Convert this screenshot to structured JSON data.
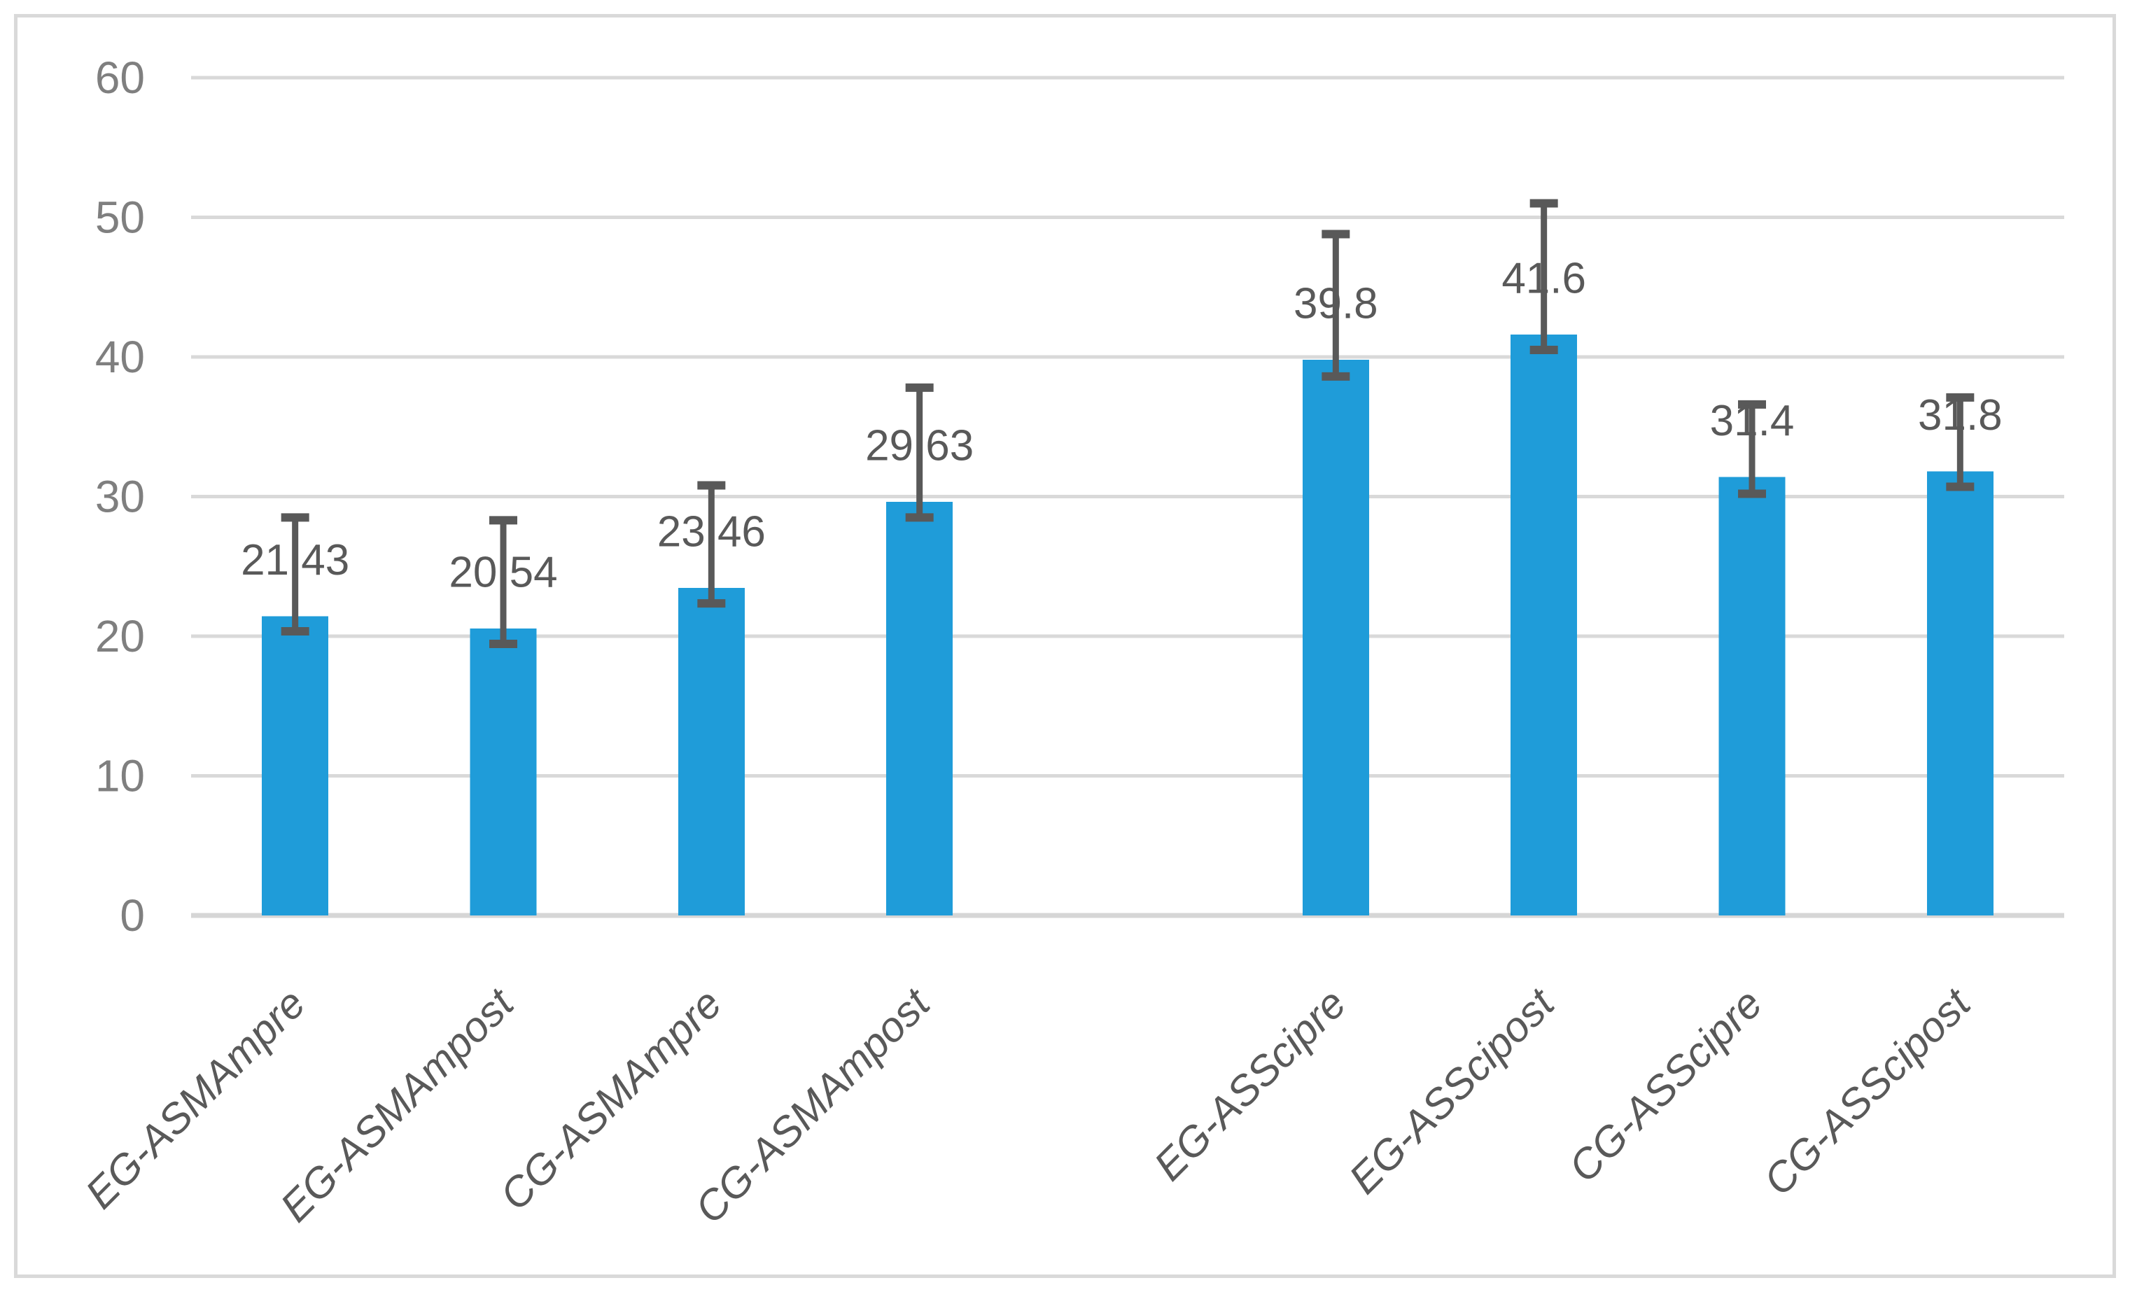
{
  "chart_data": {
    "type": "bar",
    "title": "",
    "categories": [
      "EG-ASMAmpre",
      "EG-ASMAmpost",
      "CG-ASMAmpre",
      "CG-ASMAmpost",
      "EG-ASScipre",
      "EG-ASScipost",
      "CG-ASScipre",
      "CG-ASScipost"
    ],
    "values": [
      21.43,
      20.54,
      23.46,
      29.63,
      39.8,
      41.6,
      31.4,
      31.8
    ],
    "data_labels": [
      "21.43",
      "20.54",
      "23.46",
      "29.63",
      "39.8",
      "41.6",
      "31.4",
      "31.8"
    ],
    "error_bars": [
      {
        "low": 20.35,
        "high": 28.5
      },
      {
        "low": 19.45,
        "high": 28.3
      },
      {
        "low": 22.35,
        "high": 30.8
      },
      {
        "low": 28.5,
        "high": 37.8
      },
      {
        "low": 38.6,
        "high": 48.8
      },
      {
        "low": 40.5,
        "high": 51.0
      },
      {
        "low": 30.2,
        "high": 36.6
      },
      {
        "low": 30.7,
        "high": 37.1
      }
    ],
    "bar_slots": [
      0,
      1,
      2,
      3,
      5,
      6,
      7,
      8
    ],
    "total_slots": 9,
    "group_gap_after_index": 3,
    "y_axis": {
      "min": 0,
      "max": 60,
      "step": 10,
      "tick_labels": [
        "0",
        "10",
        "20",
        "30",
        "40",
        "50",
        "60"
      ]
    },
    "xlabel": "",
    "ylabel": "",
    "legend": null,
    "grid": true,
    "colors": {
      "bar_fill": "#1F9CD9",
      "error_bar": "#595959",
      "gridline": "#D9D9D9",
      "axis_line": "#D6D6D6",
      "tick_label": "#7F7F7F",
      "category_label": "#595959",
      "data_label": "#595959",
      "frame_border": "#D9D9D9",
      "background": "#FFFFFF"
    }
  }
}
